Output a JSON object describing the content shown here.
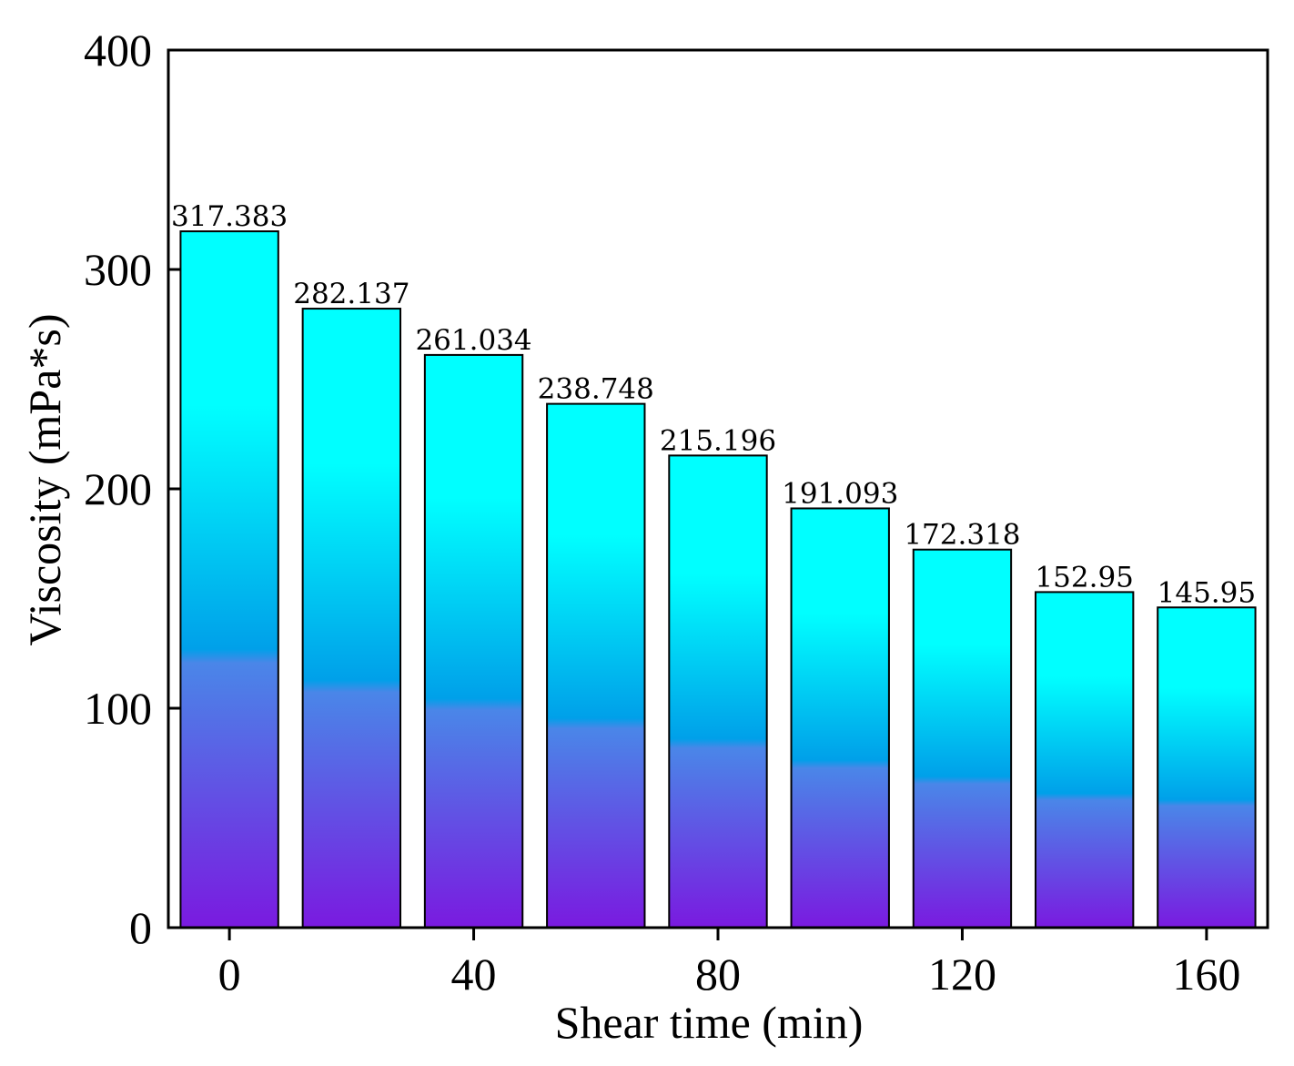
{
  "chart_data": {
    "type": "bar",
    "title": "",
    "xlabel": "Shear time (min)",
    "ylabel": "Viscosity (mPa*s)",
    "x": [
      0,
      20,
      40,
      60,
      80,
      100,
      120,
      140,
      160
    ],
    "values": [
      317.383,
      282.137,
      261.034,
      238.748,
      215.196,
      191.093,
      172.318,
      152.95,
      145.95
    ],
    "value_labels": [
      "317.383",
      "282.137",
      "261.034",
      "238.748",
      "215.196",
      "191.093",
      "172.318",
      "152.95",
      "145.95"
    ],
    "xticks": [
      0,
      40,
      80,
      120,
      160
    ],
    "xtick_labels": [
      "0",
      "40",
      "80",
      "120",
      "160"
    ],
    "xlim": [
      -10,
      170
    ],
    "ylim": [
      0,
      400
    ],
    "yticks": [
      0,
      100,
      200,
      300,
      400
    ],
    "ytick_labels": [
      "0",
      "100",
      "200",
      "300",
      "400"
    ],
    "grid": false,
    "legend": "none",
    "colors": {
      "bar_gradient_top": "#00ffff",
      "bar_gradient_mid": "#00a0e9",
      "bar_gradient_low": "#4a86e8",
      "bar_gradient_bottom": "#7a1ae0",
      "bar_border": "#000000",
      "axis": "#000000"
    }
  }
}
